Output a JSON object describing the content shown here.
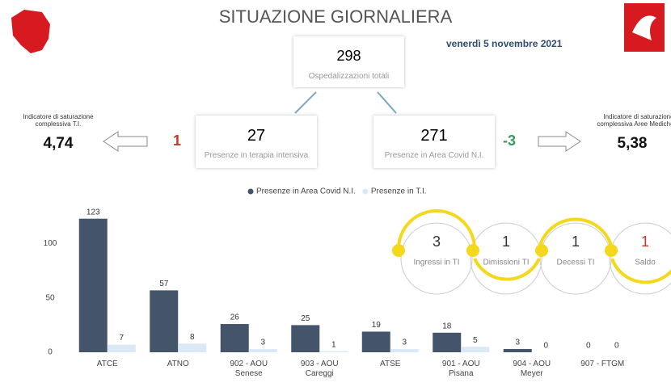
{
  "header": {
    "title": "SITUAZIONE GIORNALIERA",
    "date": "venerdì 5 novembre 2021"
  },
  "totals": {
    "value": "298",
    "label": "Ospedalizzazioni totali"
  },
  "intensive": {
    "value": "27",
    "label": "Presenze in terapia intensiva",
    "change": "1"
  },
  "area": {
    "value": "271",
    "label": "Presenze in Area Covid N.I.",
    "change": "-3"
  },
  "saturation_ti": {
    "label": "Indicatore di saturazione complessiva T.I.",
    "value": "4,74"
  },
  "saturation_area": {
    "label": "Indicatore di saturazione complessiva Aree Mediche N",
    "value": "5,38"
  },
  "flow": [
    {
      "value": "3",
      "label": "Ingressi in TI"
    },
    {
      "value": "1",
      "label": "Dimissioni TI"
    },
    {
      "value": "1",
      "label": "Decessi TI"
    },
    {
      "value": "1",
      "label": "Saldo"
    }
  ],
  "chart_data": {
    "type": "bar",
    "categories": [
      "ATCE",
      "ATNO",
      "902 - AOU Senese",
      "903 - AOU Careggi",
      "ATSE",
      "901 - AOU Pisana",
      "904 - AOU Meyer",
      "907 - FTGM"
    ],
    "series": [
      {
        "name": "Presenze in Area Covid N.I.",
        "color": "#44546a",
        "values": [
          123,
          57,
          26,
          25,
          19,
          18,
          3,
          0
        ]
      },
      {
        "name": "Presenze in T.I.",
        "color": "#dbe8f5",
        "values": [
          7,
          8,
          3,
          1,
          3,
          5,
          0,
          0
        ]
      }
    ],
    "ylim": [
      0,
      125
    ],
    "yticks": [
      0,
      50,
      100
    ],
    "grid": false
  }
}
